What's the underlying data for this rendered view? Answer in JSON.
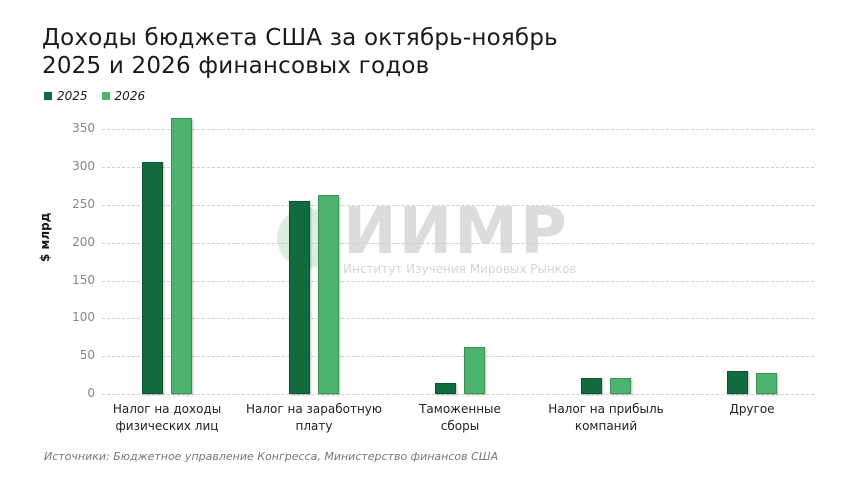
{
  "header": {
    "title_line1": "Доходы бюджета США за октябрь-ноябрь",
    "title_line2": "2025 и 2026 финансовых годов"
  },
  "legend": [
    {
      "label": "2025",
      "color": "#116b3f"
    },
    {
      "label": "2026",
      "color": "#4cb46f"
    }
  ],
  "watermark": {
    "big": "ИИМР",
    "small": "Институт Изучения Мировых Рынков"
  },
  "source": "Источники: Бюджетное управление Конгресса, Министерство финансов США",
  "chart_data": {
    "type": "bar",
    "title": "Доходы бюджета США за октябрь-ноябрь 2025 и 2026 финансовых годов",
    "xlabel": "",
    "ylabel": "$ млрд",
    "ylim": [
      0,
      350
    ],
    "yticks": [
      0,
      50,
      100,
      150,
      200,
      250,
      300,
      350
    ],
    "grid": true,
    "legend_position": "top-left",
    "categories": [
      "Налог на доходы физических лиц",
      "Налог на заработную плату",
      "Таможенные сборы",
      "Налог на прибыль компаний",
      "Другое"
    ],
    "category_lines": [
      [
        "Налог на доходы",
        "физических лиц"
      ],
      [
        "Налог на заработную",
        "плату"
      ],
      [
        "Таможенные",
        "сборы"
      ],
      [
        "Налог на прибыль",
        "компаний"
      ],
      [
        "Другое",
        ""
      ]
    ],
    "series": [
      {
        "name": "2025",
        "color": "#116b3f",
        "values": [
          307,
          255,
          15,
          21,
          31
        ]
      },
      {
        "name": "2026",
        "color": "#4cb46f",
        "values": [
          365,
          263,
          62,
          21,
          28
        ]
      }
    ]
  }
}
